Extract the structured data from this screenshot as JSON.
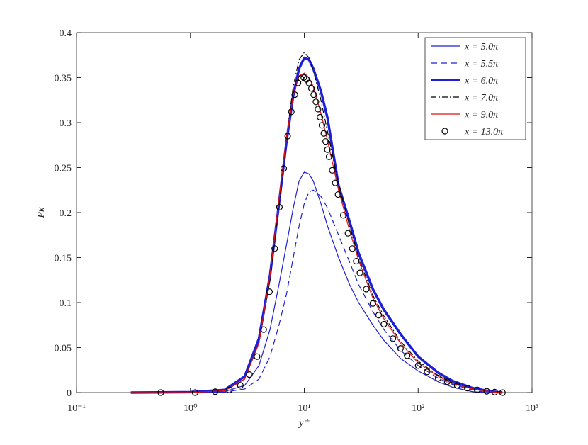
{
  "chart_data": {
    "type": "line",
    "xlabel": "y⁺",
    "ylabel": "Pκ",
    "xscale": "log",
    "xlim": [
      0.1,
      1000
    ],
    "ylim": [
      0,
      0.4
    ],
    "xticks": [
      {
        "value": 0.1,
        "label": "10⁻¹"
      },
      {
        "value": 1,
        "label": "10⁰"
      },
      {
        "value": 10,
        "label": "10¹"
      },
      {
        "value": 100,
        "label": "10²"
      },
      {
        "value": 1000,
        "label": "10³"
      }
    ],
    "yticks": [
      0,
      0.05,
      0.1,
      0.15,
      0.2,
      0.25,
      0.3,
      0.35,
      0.4
    ],
    "legend": "upper right",
    "series": [
      {
        "name": "x = 5.0π",
        "color": "#1f1fd8",
        "linestyle": "solid",
        "linewidth": 1.2,
        "x": [
          0.3,
          1,
          2,
          3,
          4,
          5,
          6,
          7,
          8,
          9,
          10,
          11,
          12,
          14,
          16,
          20,
          25,
          30,
          40,
          50,
          70,
          100,
          150,
          200,
          300,
          400
        ],
        "values": [
          0,
          0,
          0.001,
          0.008,
          0.03,
          0.07,
          0.12,
          0.165,
          0.205,
          0.235,
          0.245,
          0.243,
          0.235,
          0.21,
          0.185,
          0.15,
          0.12,
          0.1,
          0.075,
          0.058,
          0.038,
          0.024,
          0.012,
          0.006,
          0.001,
          0
        ]
      },
      {
        "name": "x = 5.5π",
        "color": "#1f1fd8",
        "linestyle": "dashed",
        "linewidth": 1.2,
        "x": [
          0.3,
          1,
          2,
          3,
          4,
          5,
          6,
          7,
          8,
          9,
          10,
          11,
          12,
          14,
          16,
          20,
          25,
          30,
          40,
          50,
          70,
          100,
          150,
          200,
          300,
          400
        ],
        "values": [
          0,
          0,
          0.0005,
          0.004,
          0.015,
          0.04,
          0.075,
          0.11,
          0.15,
          0.185,
          0.21,
          0.223,
          0.225,
          0.218,
          0.205,
          0.175,
          0.145,
          0.12,
          0.09,
          0.07,
          0.047,
          0.03,
          0.016,
          0.009,
          0.003,
          0
        ]
      },
      {
        "name": "x = 6.0π",
        "color": "#1f1fd8",
        "linestyle": "solid",
        "linewidth": 3.5,
        "x": [
          0.3,
          1,
          2,
          3,
          4,
          5,
          6,
          7,
          8,
          9,
          10,
          11,
          12,
          14,
          16,
          20,
          25,
          30,
          40,
          50,
          70,
          100,
          150,
          200,
          300,
          400,
          500,
          550
        ],
        "values": [
          0,
          0.0005,
          0.003,
          0.018,
          0.06,
          0.13,
          0.21,
          0.28,
          0.33,
          0.36,
          0.372,
          0.37,
          0.36,
          0.335,
          0.305,
          0.23,
          0.19,
          0.155,
          0.115,
          0.092,
          0.065,
          0.04,
          0.022,
          0.013,
          0.005,
          0.002,
          0.0005,
          0
        ]
      },
      {
        "name": "x = 7.0π",
        "color": "#000000",
        "linestyle": "dashdot",
        "linewidth": 1.2,
        "x": [
          0.3,
          1,
          2,
          3,
          4,
          5,
          6,
          7,
          8,
          9,
          10,
          11,
          12,
          14,
          16,
          20,
          25,
          30,
          40,
          50,
          70,
          100,
          150,
          200,
          300,
          400,
          500,
          550
        ],
        "values": [
          0,
          0,
          0.002,
          0.015,
          0.055,
          0.125,
          0.21,
          0.285,
          0.34,
          0.37,
          0.378,
          0.372,
          0.358,
          0.325,
          0.29,
          0.232,
          0.185,
          0.15,
          0.108,
          0.085,
          0.057,
          0.035,
          0.019,
          0.011,
          0.004,
          0.0015,
          0.0003,
          0
        ]
      },
      {
        "name": "x = 9.0π",
        "color": "#e01010",
        "linestyle": "solid",
        "linewidth": 1.2,
        "x": [
          0.3,
          1,
          2,
          3,
          4,
          5,
          6,
          7,
          8,
          9,
          10,
          11,
          12,
          14,
          16,
          20,
          25,
          30,
          40,
          50,
          70,
          100,
          150,
          200,
          300,
          400,
          500,
          550
        ],
        "values": [
          0,
          0,
          0.002,
          0.015,
          0.055,
          0.13,
          0.215,
          0.285,
          0.33,
          0.352,
          0.355,
          0.35,
          0.34,
          0.31,
          0.28,
          0.225,
          0.18,
          0.147,
          0.105,
          0.082,
          0.055,
          0.033,
          0.018,
          0.01,
          0.004,
          0.0015,
          0.0003,
          0
        ]
      },
      {
        "name": "x = 13.0π",
        "color": "#000000",
        "linestyle": "none",
        "marker": "o",
        "x": [
          0.55,
          1.1,
          1.65,
          2.2,
          2.75,
          3.3,
          3.85,
          4.4,
          4.95,
          5.5,
          6.05,
          6.6,
          7.15,
          7.7,
          8.25,
          8.8,
          9.35,
          9.9,
          10.45,
          11,
          11.55,
          12.1,
          12.65,
          13.2,
          13.75,
          14.3,
          14.85,
          15.4,
          15.95,
          16.5,
          17.6,
          18.7,
          19.8,
          22,
          24.2,
          26.4,
          28.6,
          30.8,
          35,
          40,
          45,
          50,
          60,
          70,
          80,
          100,
          120,
          150,
          180,
          220,
          270,
          330,
          400,
          470,
          550
        ],
        "values": [
          0,
          0,
          0.001,
          0.003,
          0.008,
          0.02,
          0.04,
          0.07,
          0.112,
          0.16,
          0.206,
          0.249,
          0.285,
          0.312,
          0.331,
          0.344,
          0.349,
          0.35,
          0.348,
          0.344,
          0.338,
          0.331,
          0.323,
          0.315,
          0.306,
          0.297,
          0.288,
          0.279,
          0.27,
          0.262,
          0.247,
          0.233,
          0.22,
          0.197,
          0.177,
          0.16,
          0.146,
          0.133,
          0.115,
          0.099,
          0.086,
          0.076,
          0.06,
          0.049,
          0.041,
          0.03,
          0.023,
          0.016,
          0.012,
          0.008,
          0.005,
          0.003,
          0.0015,
          0.0005,
          0
        ]
      }
    ]
  }
}
